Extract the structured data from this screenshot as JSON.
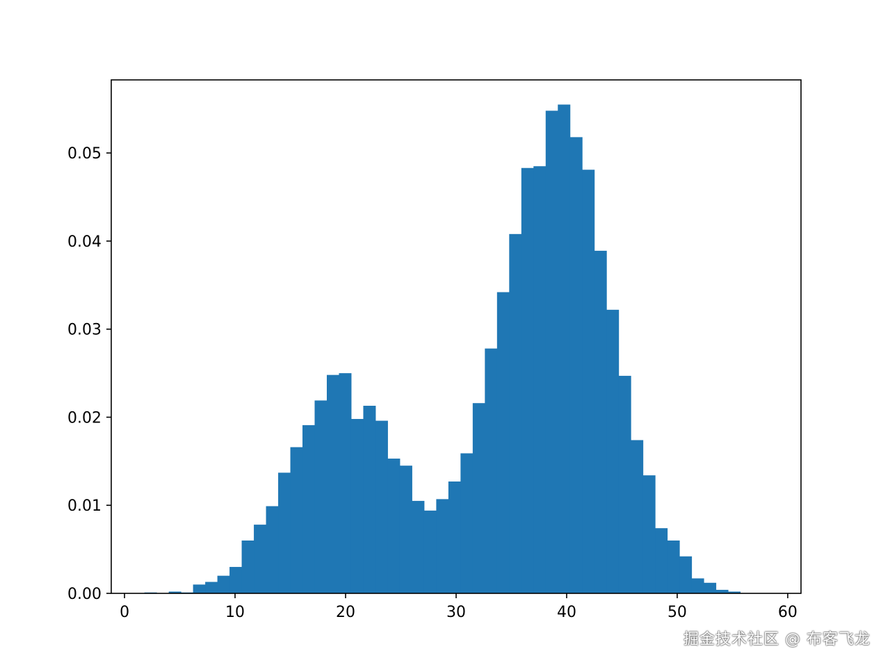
{
  "chart_data": {
    "type": "bar",
    "bin_start": 1.8,
    "bin_width": 1.1,
    "values": [
      0.0001,
      0.0,
      0.0002,
      0.0001,
      0.001,
      0.0013,
      0.002,
      0.003,
      0.006,
      0.0078,
      0.0099,
      0.0137,
      0.0166,
      0.0191,
      0.0219,
      0.0248,
      0.025,
      0.0198,
      0.0213,
      0.0196,
      0.0153,
      0.0145,
      0.0105,
      0.0094,
      0.0107,
      0.0127,
      0.0159,
      0.0216,
      0.0278,
      0.0342,
      0.0408,
      0.0483,
      0.0485,
      0.0548,
      0.0555,
      0.0518,
      0.0481,
      0.0389,
      0.0322,
      0.0247,
      0.0174,
      0.0134,
      0.0074,
      0.006,
      0.0042,
      0.0017,
      0.0012,
      0.0004,
      0.0002
    ],
    "xlim": [
      -1.2,
      61.2
    ],
    "ylim": [
      0,
      0.0583
    ],
    "xticks": [
      0,
      10,
      20,
      30,
      40,
      50,
      60
    ],
    "xtick_labels": [
      "0",
      "10",
      "20",
      "30",
      "40",
      "50",
      "60"
    ],
    "yticks": [
      0,
      0.01,
      0.02,
      0.03,
      0.04,
      0.05
    ],
    "ytick_labels": [
      "0.00",
      "0.01",
      "0.02",
      "0.03",
      "0.04",
      "0.05"
    ],
    "bar_color": "#1f77b4",
    "grid": false
  },
  "watermark": "掘金技术社区 @ 布客飞龙"
}
